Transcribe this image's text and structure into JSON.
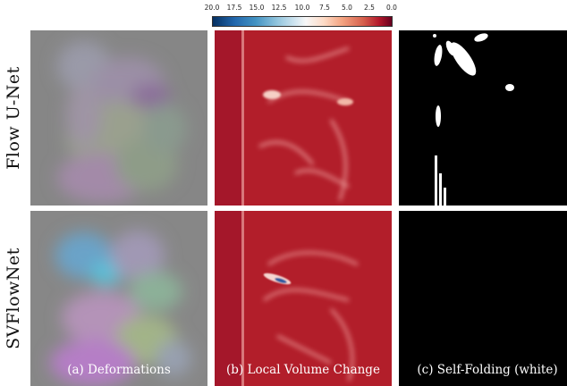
{
  "colorbar": {
    "ticks": [
      "20.0",
      "17.5",
      "15.0",
      "12.5",
      "10.0",
      "7.5",
      "5.0",
      "2.5",
      "0.0"
    ],
    "scale": "RdBu"
  },
  "rows": [
    {
      "label": "Flow U-Net"
    },
    {
      "label": "SVFlowNet"
    }
  ],
  "captions": [
    "(a) Deformations",
    "(b) Local Volume Change",
    "(c) Self-Folding (white)"
  ],
  "colors": {
    "volume_red": "#b21e2a",
    "mask_black": "#000000",
    "mask_white": "#ffffff",
    "deformation_gray": "#858585"
  }
}
